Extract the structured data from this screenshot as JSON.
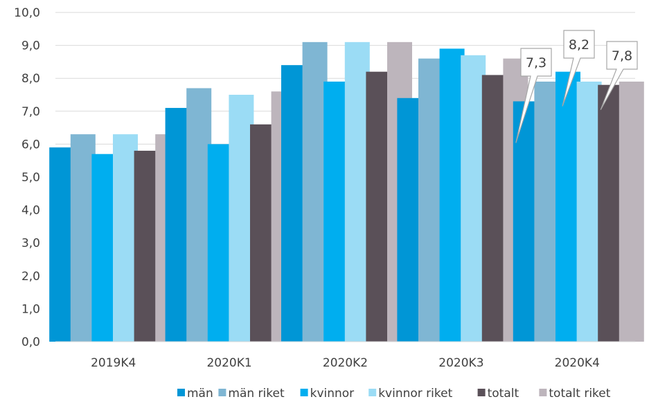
{
  "chart_data": {
    "type": "bar",
    "categories": [
      "2019K4",
      "2020K1",
      "2020K2",
      "2020K3",
      "2020K4"
    ],
    "ylim": [
      0,
      10
    ],
    "ytick_step": 1,
    "ytick_labels": [
      "0,0",
      "1,0",
      "2,0",
      "3,0",
      "4,0",
      "5,0",
      "6,0",
      "7,0",
      "8,0",
      "9,0",
      "10,0"
    ],
    "grid": true,
    "legend_position": "bottom-right",
    "series": [
      {
        "name": "män",
        "color": "#0096D6",
        "values": [
          5.9,
          7.1,
          8.4,
          7.4,
          7.3
        ]
      },
      {
        "name": "män riket",
        "color": "#7FB6D3",
        "values": [
          6.3,
          7.7,
          9.1,
          8.6,
          7.9
        ]
      },
      {
        "name": "kvinnor",
        "color": "#00AEEF",
        "values": [
          5.7,
          6.0,
          7.9,
          8.9,
          8.2
        ]
      },
      {
        "name": "kvinnor riket",
        "color": "#9BDCF5",
        "values": [
          6.3,
          7.5,
          9.1,
          8.7,
          7.9
        ]
      },
      {
        "name": "totalt",
        "color": "#5A5058",
        "values": [
          5.8,
          6.6,
          8.2,
          8.1,
          7.8
        ]
      },
      {
        "name": "totalt riket",
        "color": "#BDB5BC",
        "values": [
          6.3,
          7.6,
          9.1,
          8.6,
          7.9
        ]
      }
    ],
    "data_labels": [
      {
        "series": "män",
        "category": "2020K4",
        "text": "7,3"
      },
      {
        "series": "kvinnor",
        "category": "2020K4",
        "text": "8,2"
      },
      {
        "series": "totalt",
        "category": "2020K4",
        "text": "7,8"
      }
    ]
  }
}
